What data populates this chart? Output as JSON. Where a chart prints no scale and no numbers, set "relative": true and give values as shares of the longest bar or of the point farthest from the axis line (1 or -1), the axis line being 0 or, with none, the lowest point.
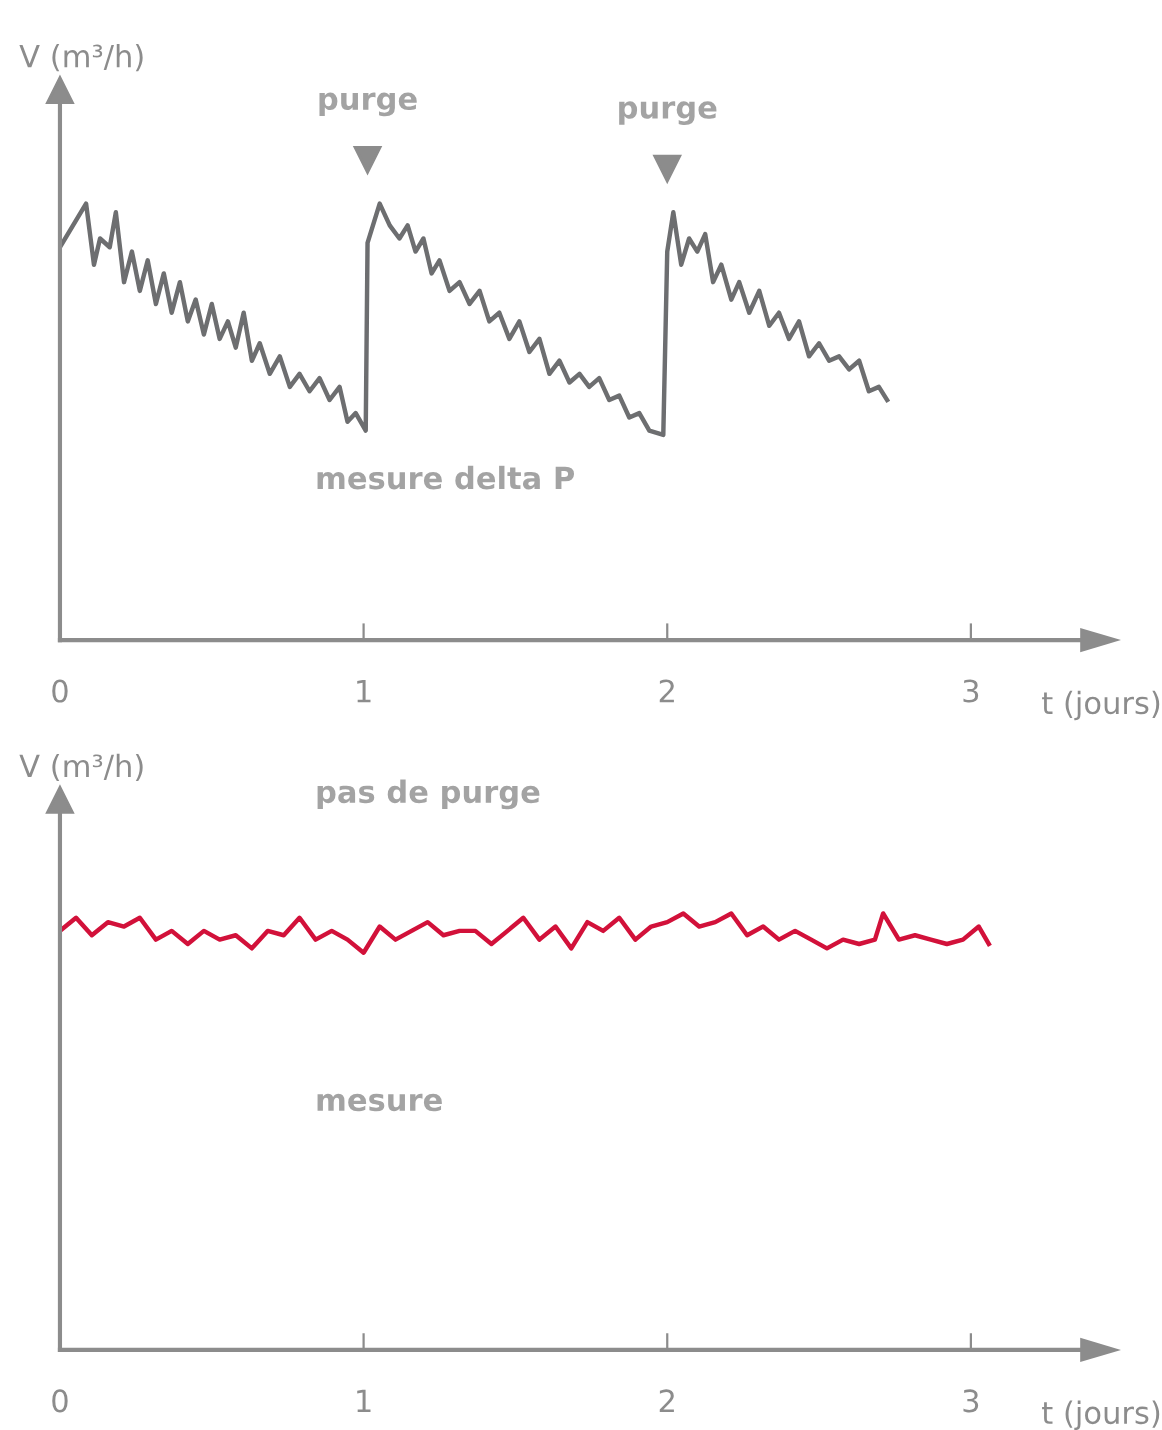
{
  "chart_data": [
    {
      "type": "line",
      "relative": true,
      "xlabel": "t (jours)",
      "ylabel": "V (m³/h)",
      "xlim": [
        0,
        3.36
      ],
      "xticks": [
        0,
        1,
        2,
        3
      ],
      "grid": false,
      "legend": false,
      "marker": "none",
      "line_style": "solid",
      "x": [
        0,
        0.086,
        0.112,
        0.132,
        0.164,
        0.184,
        0.211,
        0.237,
        0.263,
        0.289,
        0.316,
        0.342,
        0.368,
        0.395,
        0.421,
        0.447,
        0.474,
        0.5,
        0.526,
        0.553,
        0.579,
        0.605,
        0.632,
        0.658,
        0.691,
        0.724,
        0.757,
        0.789,
        0.822,
        0.855,
        0.888,
        0.921,
        0.947,
        0.974,
        1.007,
        1.013,
        1.053,
        1.086,
        1.118,
        1.145,
        1.171,
        1.197,
        1.224,
        1.25,
        1.283,
        1.316,
        1.349,
        1.382,
        1.414,
        1.447,
        1.48,
        1.513,
        1.546,
        1.579,
        1.612,
        1.645,
        1.678,
        1.711,
        1.743,
        1.776,
        1.809,
        1.842,
        1.875,
        1.908,
        1.941,
        1.987,
        2.0,
        2.02,
        2.046,
        2.072,
        2.099,
        2.125,
        2.151,
        2.178,
        2.211,
        2.237,
        2.27,
        2.303,
        2.336,
        2.368,
        2.401,
        2.434,
        2.467,
        2.5,
        2.533,
        2.566,
        2.599,
        2.632,
        2.664,
        2.697,
        2.724
      ],
      "series": [
        {
          "color": "#6d6e70",
          "values": [
            0.9,
            1.0,
            0.86,
            0.92,
            0.9,
            0.98,
            0.82,
            0.89,
            0.8,
            0.87,
            0.77,
            0.84,
            0.75,
            0.82,
            0.73,
            0.78,
            0.7,
            0.77,
            0.69,
            0.73,
            0.67,
            0.75,
            0.64,
            0.68,
            0.61,
            0.65,
            0.58,
            0.61,
            0.57,
            0.6,
            0.55,
            0.58,
            0.5,
            0.52,
            0.48,
            0.91,
            1.0,
            0.95,
            0.92,
            0.95,
            0.89,
            0.92,
            0.84,
            0.87,
            0.8,
            0.82,
            0.77,
            0.8,
            0.73,
            0.75,
            0.69,
            0.73,
            0.66,
            0.69,
            0.61,
            0.64,
            0.59,
            0.61,
            0.58,
            0.6,
            0.55,
            0.56,
            0.51,
            0.52,
            0.48,
            0.47,
            0.89,
            0.98,
            0.86,
            0.92,
            0.89,
            0.93,
            0.82,
            0.86,
            0.78,
            0.82,
            0.75,
            0.8,
            0.72,
            0.75,
            0.69,
            0.73,
            0.65,
            0.68,
            0.64,
            0.65,
            0.62,
            0.64,
            0.57,
            0.58,
            0.55
          ]
        }
      ],
      "annotations": [
        {
          "text": "purge",
          "x": 1.013,
          "y": 1.0
        },
        {
          "text": "purge",
          "x": 2.0,
          "y": 0.98
        },
        "mesure delta P"
      ]
    },
    {
      "type": "line",
      "relative": true,
      "xlabel": "t (jours)",
      "ylabel": "V (m³/h)",
      "xlim": [
        0,
        3.36
      ],
      "xticks": [
        0,
        1,
        2,
        3
      ],
      "grid": false,
      "legend": false,
      "marker": "none",
      "line_style": "solid",
      "x": [
        0,
        0.053,
        0.105,
        0.158,
        0.211,
        0.263,
        0.316,
        0.368,
        0.421,
        0.474,
        0.526,
        0.579,
        0.632,
        0.684,
        0.737,
        0.789,
        0.842,
        0.895,
        0.947,
        1.0,
        1.053,
        1.105,
        1.158,
        1.211,
        1.263,
        1.316,
        1.368,
        1.421,
        1.474,
        1.526,
        1.579,
        1.632,
        1.684,
        1.737,
        1.789,
        1.842,
        1.895,
        1.947,
        2.0,
        2.053,
        2.105,
        2.158,
        2.211,
        2.263,
        2.316,
        2.368,
        2.421,
        2.474,
        2.526,
        2.579,
        2.632,
        2.684,
        2.711,
        2.763,
        2.816,
        2.868,
        2.921,
        2.974,
        3.026,
        3.059
      ],
      "series": [
        {
          "color": "#d2113a",
          "values": [
            0.96,
            0.99,
            0.95,
            0.98,
            0.97,
            0.99,
            0.94,
            0.96,
            0.93,
            0.96,
            0.94,
            0.95,
            0.92,
            0.96,
            0.95,
            0.99,
            0.94,
            0.96,
            0.94,
            0.91,
            0.97,
            0.94,
            0.96,
            0.98,
            0.95,
            0.96,
            0.96,
            0.93,
            0.96,
            0.99,
            0.94,
            0.97,
            0.92,
            0.98,
            0.96,
            0.99,
            0.94,
            0.97,
            0.98,
            1.0,
            0.97,
            0.98,
            1.0,
            0.95,
            0.97,
            0.94,
            0.96,
            0.94,
            0.92,
            0.94,
            0.93,
            0.94,
            1.0,
            0.94,
            0.95,
            0.94,
            0.93,
            0.94,
            0.97,
            0.93
          ]
        }
      ],
      "annotations": [
        "pas de purge",
        "mesure"
      ]
    }
  ]
}
